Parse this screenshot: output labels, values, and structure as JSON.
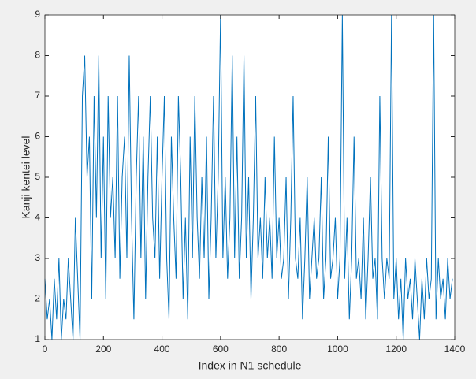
{
  "chart_data": {
    "type": "line",
    "xlabel": "Index in N1 schedule",
    "ylabel": "Kanji kentei level",
    "xlim": [
      0,
      1400
    ],
    "ylim": [
      1,
      9
    ],
    "xticks": [
      0,
      200,
      400,
      600,
      800,
      1000,
      1200,
      1400
    ],
    "yticks": [
      1,
      2,
      3,
      4,
      5,
      6,
      7,
      8,
      9
    ],
    "grid": false,
    "x": [
      0,
      8,
      16,
      24,
      32,
      40,
      48,
      56,
      64,
      72,
      80,
      88,
      96,
      104,
      112,
      120,
      128,
      136,
      144,
      152,
      160,
      168,
      176,
      184,
      192,
      200,
      208,
      216,
      224,
      232,
      240,
      248,
      256,
      264,
      272,
      280,
      288,
      296,
      304,
      312,
      320,
      328,
      336,
      344,
      352,
      360,
      368,
      376,
      384,
      392,
      400,
      408,
      416,
      424,
      432,
      440,
      448,
      456,
      464,
      472,
      480,
      488,
      496,
      504,
      512,
      520,
      528,
      536,
      544,
      552,
      560,
      568,
      576,
      584,
      592,
      600,
      608,
      616,
      624,
      632,
      640,
      648,
      656,
      664,
      672,
      680,
      688,
      696,
      704,
      712,
      720,
      728,
      736,
      744,
      752,
      760,
      768,
      776,
      784,
      792,
      800,
      808,
      816,
      824,
      832,
      840,
      848,
      856,
      864,
      872,
      880,
      888,
      896,
      904,
      912,
      920,
      928,
      936,
      944,
      952,
      960,
      968,
      976,
      984,
      992,
      1000,
      1008,
      1016,
      1024,
      1032,
      1040,
      1048,
      1056,
      1064,
      1072,
      1080,
      1088,
      1096,
      1104,
      1112,
      1120,
      1128,
      1136,
      1144,
      1152,
      1160,
      1168,
      1176,
      1184,
      1192,
      1200,
      1208,
      1216,
      1224,
      1232,
      1240,
      1248,
      1256,
      1264,
      1272,
      1280,
      1288,
      1296,
      1304,
      1312,
      1320,
      1328,
      1336,
      1344,
      1352,
      1360,
      1368,
      1376,
      1384,
      1392
    ],
    "series": [
      {
        "color": "#0072bd",
        "values": [
          2.5,
          1.5,
          2,
          1,
          2.5,
          1.5,
          3,
          1,
          2,
          1.5,
          3,
          2,
          1,
          4,
          2.5,
          1,
          7,
          8,
          5,
          6,
          2,
          7,
          4,
          8,
          3,
          6,
          2,
          7,
          4,
          5,
          3,
          7,
          2.5,
          5,
          6,
          3,
          8,
          4,
          1.5,
          5,
          7,
          3,
          6,
          2,
          5,
          7,
          4,
          3,
          6,
          2.5,
          5,
          7,
          3,
          1.5,
          6,
          4,
          2.5,
          7,
          5,
          2,
          4,
          1.5,
          6,
          3,
          7,
          4,
          2.5,
          5,
          3,
          6,
          2,
          4,
          7,
          3,
          5,
          9,
          3,
          5,
          2.5,
          4,
          8,
          3,
          6,
          2.5,
          4,
          8,
          3,
          5,
          2,
          4,
          7,
          3,
          4,
          2.5,
          5,
          3,
          4,
          2.5,
          6,
          3,
          4,
          2.5,
          3,
          5,
          2,
          4,
          7,
          3,
          2.5,
          4,
          1.5,
          3,
          5,
          2,
          3,
          4,
          2.5,
          3,
          5,
          2,
          3,
          6,
          2.5,
          3,
          4,
          2,
          3,
          9,
          2.5,
          4,
          1.5,
          3,
          6,
          2.5,
          3,
          2,
          4,
          1.5,
          3,
          5,
          2.5,
          3,
          1.5,
          7,
          3,
          2,
          3,
          2.5,
          9,
          2,
          3,
          1.5,
          2.5,
          1,
          3,
          2,
          2.5,
          1.5,
          3,
          2,
          1,
          2.5,
          1.5,
          3,
          2,
          2.5,
          9,
          1.5,
          3,
          2,
          2.5,
          1.5,
          3,
          2,
          2.5
        ]
      }
    ]
  }
}
